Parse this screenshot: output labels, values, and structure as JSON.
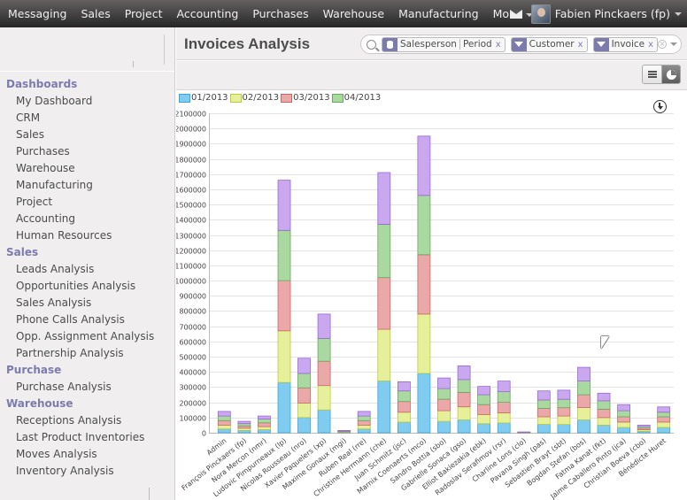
{
  "topbar": {
    "menu": [
      "Messaging",
      "Sales",
      "Project",
      "Accounting",
      "Purchases",
      "Warehouse",
      "Manufacturing",
      "More"
    ],
    "user": "Fabien Pinckaers (fp)"
  },
  "sidebar": {
    "sections": [
      {
        "title": "Dashboards",
        "items": [
          "My Dashboard",
          "CRM",
          "Sales",
          "Purchases",
          "Warehouse",
          "Manufacturing",
          "Project",
          "Accounting",
          "Human Resources"
        ]
      },
      {
        "title": "Sales",
        "items": [
          "Leads Analysis",
          "Opportunities Analysis",
          "Sales Analysis",
          "Phone Calls Analysis",
          "Opp. Assignment Analysis",
          "Partnership Analysis"
        ]
      },
      {
        "title": "Purchase",
        "items": [
          "Purchase Analysis"
        ]
      },
      {
        "title": "Warehouse",
        "items": [
          "Receptions Analysis",
          "Last Product Inventories",
          "Moves Analysis",
          "Inventory Analysis"
        ]
      }
    ]
  },
  "header": {
    "title": "Invoices Analysis"
  },
  "search": {
    "groupby_facet": [
      "Salesperson",
      "Period"
    ],
    "filter_facets": [
      "Customer",
      "Invoice"
    ],
    "remove_label": "x"
  },
  "colors": {
    "topbar": "#3a3a3a",
    "accent": "#7c7bad",
    "series": [
      {
        "fill": "#7fccf0",
        "stroke": "#3ba7d9"
      },
      {
        "fill": "#e6f09a",
        "stroke": "#bccb3b"
      },
      {
        "fill": "#eba8a8",
        "stroke": "#cc6666"
      },
      {
        "fill": "#a9d8a0",
        "stroke": "#6aa85f"
      },
      {
        "fill": "#c9a8ef",
        "stroke": "#9a6ad6"
      }
    ]
  },
  "chart_data": {
    "type": "bar",
    "stacked": true,
    "categories": [
      "Admin",
      "François Pinckaers (fp)",
      "Nora Mercon (nmr)",
      "Ludovic Pimpurneaux (lp)",
      "Nicolas Rousseau (nro)",
      "Xavier Paquelers (xp)",
      "Maxime Gonaux (mgi)",
      "Ruben Real (rre)",
      "Christine Herrmann (che)",
      "Juan Schmitz (jsc)",
      "Marnix Coenaerts (mco)",
      "Sandro Bottia (sbo)",
      "Gabrielle Sonaca (gso)",
      "Elliot Bakiezakia (ebk)",
      "Radoslav Serafimov (rsr)",
      "Charline Lons (clo)",
      "Pavana Singh (pas)",
      "Sebastien Brayt (sbt)",
      "Bogdan Stefan (bos)",
      "Fatma Kanat (fkt)",
      "Jaime Caballero Pinto (jca)",
      "Christian Boeva (cbo)",
      "Bénédicte Huret"
    ],
    "legend": [
      "01/2013",
      "02/2013",
      "03/2013",
      "04/2013"
    ],
    "series": [
      {
        "name": "01/2013",
        "values": [
          25000,
          15000,
          20000,
          330000,
          100000,
          150000,
          3000,
          25000,
          340000,
          70000,
          390000,
          75000,
          85000,
          60000,
          65000,
          1000,
          55000,
          55000,
          85000,
          50000,
          35000,
          10000,
          35000
        ]
      },
      {
        "name": "02/2013",
        "values": [
          25000,
          15000,
          20000,
          340000,
          95000,
          160000,
          3000,
          25000,
          340000,
          65000,
          390000,
          70000,
          85000,
          60000,
          65000,
          1000,
          50000,
          55000,
          80000,
          50000,
          35000,
          10000,
          35000
        ]
      },
      {
        "name": "03/2013",
        "values": [
          30000,
          15000,
          25000,
          330000,
          100000,
          160000,
          3000,
          30000,
          340000,
          70000,
          390000,
          75000,
          95000,
          65000,
          70000,
          1000,
          55000,
          55000,
          85000,
          55000,
          35000,
          10000,
          35000
        ]
      },
      {
        "name": "04/2013",
        "values": [
          30000,
          15000,
          25000,
          330000,
          95000,
          150000,
          3000,
          30000,
          350000,
          70000,
          390000,
          70000,
          85000,
          65000,
          70000,
          1000,
          55000,
          55000,
          90000,
          55000,
          40000,
          10000,
          30000
        ]
      },
      {
        "name": "",
        "values": [
          30000,
          15000,
          20000,
          330000,
          100000,
          160000,
          3000,
          30000,
          340000,
          60000,
          390000,
          70000,
          90000,
          55000,
          70000,
          1000,
          60000,
          60000,
          90000,
          50000,
          40000,
          10000,
          35000
        ]
      }
    ],
    "yticks": [
      0,
      100000,
      200000,
      300000,
      400000,
      500000,
      600000,
      700000,
      800000,
      900000,
      1000000,
      1100000,
      1200000,
      1300000,
      1400000,
      1500000,
      1600000,
      1700000,
      1800000,
      1900000,
      2000000,
      2100000
    ],
    "ylim": [
      0,
      2100000
    ],
    "grid": true,
    "legend_position": "top-left"
  }
}
